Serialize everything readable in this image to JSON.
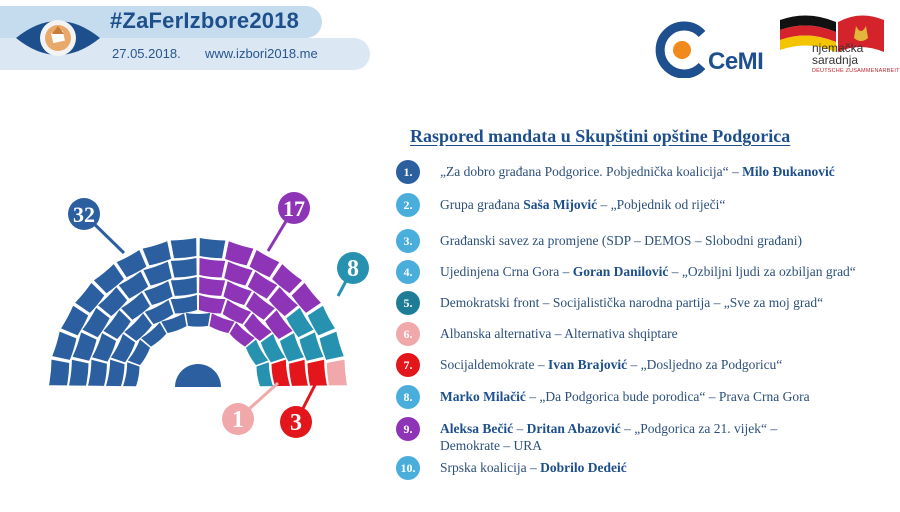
{
  "header": {
    "hashtag": "#ZaFerIzbore2018",
    "date": "27.05.2018.",
    "website": "www.izbori2018.me"
  },
  "logos": {
    "cemi": "CeMI",
    "partner_line1": "njemačka",
    "partner_line2": "saradnja",
    "partner_sub": "DEUTSCHE ZUSAMMENARBEIT"
  },
  "chart_data": {
    "type": "parliament",
    "title": "Raspored mandata u Skupštini opštine Podgorica",
    "total_seats": 61,
    "series": [
      {
        "name": "1",
        "seats": 32,
        "color": "#2b5fa0"
      },
      {
        "name": "9",
        "seats": 17,
        "color": "#8e34b6"
      },
      {
        "name": "5",
        "seats": 8,
        "color": "#2692b0"
      },
      {
        "name": "7",
        "seats": 3,
        "color": "#e2161b"
      },
      {
        "name": "6",
        "seats": 1,
        "color": "#f0a8aa"
      }
    ],
    "callouts": [
      {
        "value": "32",
        "color": "#2b5fa0"
      },
      {
        "value": "17",
        "color": "#8e34b6"
      },
      {
        "value": "8",
        "color": "#2692b0"
      },
      {
        "value": "1",
        "color": "#f0a8aa"
      },
      {
        "value": "3",
        "color": "#e2161b"
      }
    ]
  },
  "legend": [
    {
      "num": "1.",
      "color": "#2b5fa0",
      "parts": [
        [
          "„Za dobro građana Podgorice. Pobjednička koalicija“ – ",
          false
        ],
        [
          "Milo Đukanović",
          true
        ]
      ]
    },
    {
      "num": "2.",
      "color": "#4aaedc",
      "parts": [
        [
          "Grupa građana ",
          false
        ],
        [
          "Saša Mijović",
          true
        ],
        [
          " – „Pobjednik od riječi“",
          false
        ]
      ]
    },
    {
      "num": "3.",
      "color": "#4aaedc",
      "parts": [
        [
          "Građanski savez za promjene (SDP – DEMOS – Slobodni građani)",
          false
        ]
      ]
    },
    {
      "num": "4.",
      "color": "#4aaedc",
      "parts": [
        [
          "Ujedinjena Crna Gora – ",
          false
        ],
        [
          "Goran Danilović",
          true
        ],
        [
          " – „Ozbiljni ljudi za ozbiljan grad“",
          false
        ]
      ]
    },
    {
      "num": "5.",
      "color": "#1f7c97",
      "parts": [
        [
          "Demokratski front – Socijalistička narodna partija – „Sve za moj grad“",
          false
        ]
      ]
    },
    {
      "num": "6.",
      "color": "#f0a8aa",
      "parts": [
        [
          "Albanska alternativa – Alternativa shqiptare",
          false
        ]
      ]
    },
    {
      "num": "7.",
      "color": "#e2161b",
      "parts": [
        [
          "Socijaldemokrate – ",
          false
        ],
        [
          "Ivan Brajović",
          true
        ],
        [
          " – „Dosljedno za Podgoricu“",
          false
        ]
      ]
    },
    {
      "num": "8.",
      "color": "#4aaedc",
      "parts": [
        [
          "Marko Milačić",
          true
        ],
        [
          " – „Da Podgorica bude porodica“ – Prava Crna Gora",
          false
        ]
      ]
    },
    {
      "num": "9.",
      "color": "#8e34b6",
      "parts": [
        [
          "Aleksa Bečić",
          true
        ],
        [
          " – ",
          false
        ],
        [
          "Dritan Abazović",
          true
        ],
        [
          " – „Podgorica za 21. vijek“ –\nDemokrate – URA",
          false
        ]
      ]
    },
    {
      "num": "10.",
      "color": "#4aaedc",
      "parts": [
        [
          "Srpska koalicija – ",
          false
        ],
        [
          "Dobrilo Dedeić",
          true
        ]
      ]
    }
  ]
}
